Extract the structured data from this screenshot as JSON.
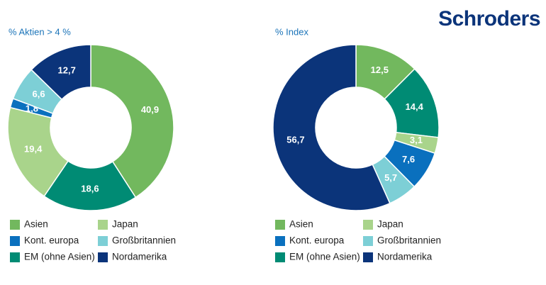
{
  "brand": "Schroders",
  "chart_data": [
    {
      "type": "donut",
      "title": "% Aktien > 4 %",
      "categories": [
        "Asien",
        "EM (ohne Asien)",
        "Japan",
        "Kont. europa",
        "Großbritannien",
        "Nordamerika"
      ],
      "values": [
        40.9,
        18.6,
        19.4,
        1.8,
        6.6,
        12.7
      ],
      "value_labels": [
        "40,9",
        "18,6",
        "19,4",
        "1,8",
        "6,6",
        "12,7"
      ],
      "colors": [
        "#72b85e",
        "#008b74",
        "#a9d48b",
        "#0a70be",
        "#7dcfd6",
        "#0b347a"
      ]
    },
    {
      "type": "donut",
      "title": "% Index",
      "categories": [
        "Asien",
        "EM (ohne Asien)",
        "Japan",
        "Kont. europa",
        "Großbritannien",
        "Nordamerika"
      ],
      "values": [
        12.5,
        14.4,
        3.1,
        7.6,
        5.7,
        56.7
      ],
      "value_labels": [
        "12,5",
        "14,4",
        "3,1",
        "7,6",
        "5,7",
        "56,7"
      ],
      "colors": [
        "#72b85e",
        "#008b74",
        "#a9d48b",
        "#0a70be",
        "#7dcfd6",
        "#0b347a"
      ]
    }
  ]
}
